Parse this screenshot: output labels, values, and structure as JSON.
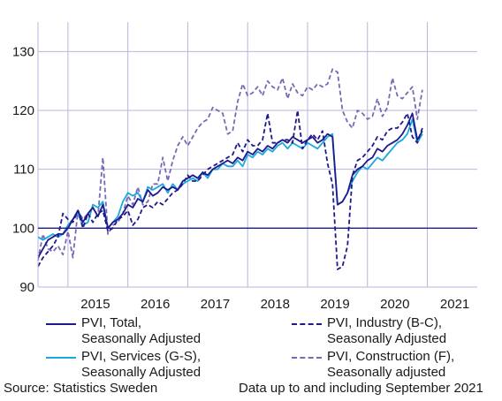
{
  "chart_data": {
    "type": "line",
    "title": "",
    "xlabel": "",
    "ylabel": "",
    "ylim": [
      90,
      135
    ],
    "xlim": [
      "2014-07",
      "2021-11"
    ],
    "yticks": [
      90,
      100,
      110,
      120,
      130
    ],
    "xtick_labels": [
      "2015",
      "2016",
      "2017",
      "2018",
      "2019",
      "2020",
      "2021"
    ],
    "grid": "vertical-and-horizontal",
    "reference_line": 100,
    "x_start": "2014-07",
    "x_step": "month",
    "series": [
      {
        "name": "PVI, Total,\nSeasonally Adjusted",
        "color": "#1f1a8c",
        "dash": "solid",
        "values": [
          95.0,
          96.5,
          98.0,
          98.5,
          99.0,
          99.0,
          100.0,
          101.5,
          103.0,
          101.0,
          102.5,
          103.5,
          102.0,
          104.0,
          100.0,
          101.0,
          101.5,
          102.5,
          104.0,
          103.5,
          105.0,
          104.5,
          106.5,
          105.5,
          106.0,
          107.0,
          106.5,
          107.0,
          106.5,
          108.0,
          108.5,
          109.0,
          108.5,
          109.5,
          109.0,
          110.0,
          110.5,
          111.0,
          111.5,
          111.0,
          112.0,
          111.5,
          113.0,
          112.5,
          113.5,
          113.0,
          114.0,
          113.5,
          114.5,
          115.0,
          114.5,
          115.5,
          115.0,
          114.5,
          115.0,
          115.5,
          114.5,
          115.0,
          116.0,
          115.5,
          104.0,
          104.5,
          106.0,
          109.0,
          110.0,
          110.5,
          111.5,
          112.0,
          113.5,
          113.0,
          114.0,
          114.5,
          115.0,
          116.0,
          117.5,
          119.5,
          115.0,
          116.5
        ]
      },
      {
        "name": "PVI, Industry (B-C),\nSeasonally Adjusted",
        "color": "#1f1a8c",
        "dash": "dashed",
        "values": [
          93.5,
          95.0,
          96.0,
          97.0,
          98.5,
          102.5,
          101.5,
          101.0,
          103.0,
          100.0,
          102.5,
          101.0,
          102.5,
          103.0,
          99.5,
          100.0,
          101.5,
          102.0,
          103.0,
          100.5,
          101.5,
          103.5,
          104.0,
          103.5,
          104.5,
          104.0,
          105.0,
          106.0,
          106.5,
          107.5,
          109.0,
          108.0,
          108.0,
          109.0,
          110.0,
          110.5,
          111.0,
          111.5,
          112.0,
          112.5,
          114.5,
          113.0,
          115.0,
          114.0,
          114.0,
          115.0,
          119.5,
          114.5,
          114.5,
          115.0,
          115.0,
          114.5,
          120.0,
          113.5,
          115.0,
          116.0,
          115.0,
          116.5,
          111.0,
          107.5,
          93.0,
          93.5,
          97.0,
          109.0,
          111.5,
          112.0,
          113.0,
          114.0,
          115.5,
          115.0,
          116.5,
          117.0,
          117.0,
          118.0,
          119.5,
          115.5,
          114.5,
          117.0
        ]
      },
      {
        "name": "PVI, Services (G-S),\nSeasonally Adjusted",
        "color": "#1aa9de",
        "dash": "solid",
        "values": [
          98.5,
          98.0,
          98.5,
          99.0,
          98.5,
          99.0,
          100.5,
          101.5,
          102.5,
          100.5,
          101.0,
          104.0,
          103.5,
          104.5,
          100.0,
          101.0,
          102.0,
          104.5,
          106.0,
          105.5,
          106.0,
          104.5,
          107.0,
          106.5,
          107.0,
          107.5,
          106.0,
          107.5,
          106.5,
          107.5,
          108.0,
          108.5,
          108.0,
          109.5,
          108.5,
          110.0,
          110.0,
          111.0,
          110.5,
          110.5,
          111.5,
          110.5,
          112.5,
          112.0,
          113.0,
          112.5,
          113.5,
          113.0,
          114.0,
          114.5,
          113.5,
          114.5,
          114.0,
          113.5,
          114.5,
          114.0,
          113.5,
          114.5,
          115.5,
          116.0,
          104.0,
          104.5,
          106.0,
          108.0,
          109.5,
          110.5,
          110.0,
          111.0,
          112.0,
          111.5,
          112.5,
          113.5,
          114.5,
          115.0,
          116.0,
          118.5,
          114.5,
          116.0
        ]
      },
      {
        "name": "PVI, Construction (F),\nSeasonally adjusted",
        "color": "#7b68b5",
        "dash": "dashed",
        "values": [
          94.5,
          99.0,
          96.5,
          96.0,
          97.0,
          95.5,
          99.5,
          95.0,
          103.0,
          101.5,
          102.5,
          103.5,
          102.0,
          112.0,
          99.0,
          100.5,
          101.0,
          102.5,
          105.5,
          104.0,
          107.0,
          104.0,
          104.5,
          107.5,
          107.5,
          112.0,
          108.0,
          111.5,
          114.0,
          115.5,
          114.0,
          115.5,
          117.0,
          118.0,
          118.5,
          120.5,
          120.0,
          119.5,
          116.0,
          116.5,
          121.5,
          124.5,
          122.5,
          123.0,
          124.0,
          122.5,
          125.0,
          124.0,
          123.5,
          125.5,
          122.0,
          124.5,
          123.0,
          122.5,
          124.0,
          123.5,
          124.5,
          124.0,
          124.5,
          127.0,
          126.5,
          120.0,
          118.0,
          117.0,
          120.0,
          119.5,
          118.5,
          119.0,
          122.0,
          119.0,
          120.5,
          125.5,
          122.5,
          122.0,
          123.0,
          124.0,
          118.5,
          123.5
        ]
      }
    ]
  },
  "footer": {
    "source": "Source: Statistics Sweden",
    "note": "Data up to and including September 2021"
  }
}
